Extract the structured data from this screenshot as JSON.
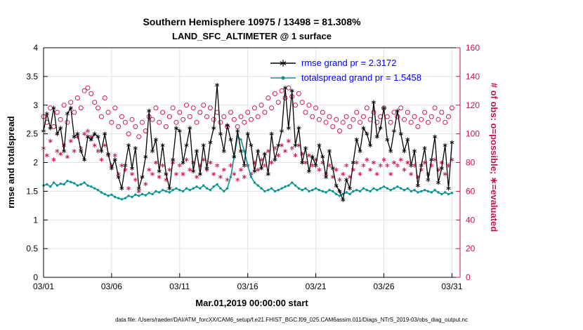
{
  "page": {
    "title_line1": "Southern Hemisphere 10975 / 13498 = 81.308%",
    "title_line2": "LAND_SFC_ALTIMETER @ 1 surface",
    "footer": "data file: /Users/raeder/DAI/ATM_forcXX/CAM6_setup/f.e21.FHIST_BGC.f09_025.CAM6assim.011/Diags_NTrS_2019-03/obs_diag_output.nc"
  },
  "chart_data": {
    "type": "line",
    "title": "Southern Hemisphere 10975 / 13498 = 81.308%",
    "subtitle": "LAND_SFC_ALTIMETER @ 1 surface",
    "xlabel": "Mar.01,2019 00:00:00 start",
    "ylabel_left": "rmse and totalspread",
    "ylabel_right": "# of obs: o=possible; ∗=evaluated",
    "grid": true,
    "x_range": [
      0,
      30.6
    ],
    "x_step": 0.25,
    "x_ticks": {
      "positions": [
        0,
        5,
        10,
        15,
        20,
        25,
        30
      ],
      "labels": [
        "03/01",
        "03/06",
        "03/11",
        "03/16",
        "03/21",
        "03/26",
        "03/31"
      ]
    },
    "y_left": {
      "min": 0,
      "max": 4,
      "tick_values": [
        0,
        0.5,
        1,
        1.5,
        2,
        2.5,
        3,
        3.5,
        4
      ],
      "tick_labels": [
        "0",
        "0.5",
        "1",
        "1.5",
        "2",
        "2.5",
        "3",
        "3.5",
        "4"
      ]
    },
    "y_right": {
      "min": 0,
      "max": 160,
      "tick_values": [
        0,
        20,
        40,
        60,
        80,
        100,
        120,
        140,
        160
      ],
      "tick_labels": [
        "0",
        "20",
        "40",
        "60",
        "80",
        "100",
        "120",
        "140",
        "160"
      ]
    },
    "legend": [
      {
        "label": "rmse grand pr = 2.3172",
        "series": "rmse",
        "marker": "asterisk"
      },
      {
        "label": "totalspread grand pr = 1.5458",
        "series": "totalspread",
        "marker": "dot"
      }
    ],
    "colors": {
      "rmse": "#000000",
      "totalspread": "#0a9595",
      "obs": "#cc1458",
      "axis_right": "#c8104e",
      "legend_text": "#0000ff",
      "grid": "#e3e3e3"
    },
    "series": {
      "rmse": [
        2.55,
        2.85,
        2.6,
        2.95,
        2.5,
        2.6,
        2.2,
        2.85,
        2.95,
        2.45,
        2.5,
        2.2,
        2.05,
        2.45,
        2.4,
        2.5,
        2.45,
        2.2,
        2.5,
        2.15,
        1.9,
        2.05,
        1.75,
        1.55,
        1.95,
        2.3,
        1.9,
        2.25,
        1.55,
        1.75,
        2.1,
        2.9,
        2.2,
        2.4,
        1.85,
        2.3,
        1.8,
        1.55,
        2.05,
        2.6,
        2.55,
        2.0,
        2.3,
        2.6,
        1.85,
        2.2,
        1.8,
        2.3,
        1.9,
        2.35,
        2.6,
        3.35,
        2.5,
        2.2,
        2.65,
        2.4,
        2.1,
        2.55,
        2.2,
        1.95,
        2.5,
        2.3,
        1.85,
        2.2,
        1.9,
        2.15,
        1.8,
        2.5,
        2.05,
        2.3,
        2.55,
        3.3,
        2.6,
        3.25,
        2.3,
        2.6,
        2.0,
        2.25,
        1.85,
        2.1,
        1.95,
        2.3,
        2.1,
        1.75,
        2.2,
        1.9,
        1.6,
        1.5,
        1.35,
        1.7,
        1.55,
        2.0,
        2.4,
        2.2,
        2.6,
        2.5,
        2.3,
        3.05,
        2.45,
        2.6,
        2.95,
        2.4,
        2.2,
        2.55,
        2.9,
        2.5,
        2.2,
        2.4,
        1.95,
        2.2,
        1.6,
        1.95,
        2.25,
        1.7,
        2.05,
        2.45,
        1.65,
        1.9,
        2.3,
        1.55,
        2.35
      ],
      "totalspread": [
        1.6,
        1.62,
        1.58,
        1.65,
        1.6,
        1.63,
        1.62,
        1.68,
        1.66,
        1.64,
        1.6,
        1.62,
        1.65,
        1.6,
        1.58,
        1.55,
        1.52,
        1.48,
        1.45,
        1.42,
        1.44,
        1.4,
        1.38,
        1.36,
        1.38,
        1.42,
        1.4,
        1.44,
        1.42,
        1.45,
        1.43,
        1.47,
        1.45,
        1.5,
        1.48,
        1.52,
        1.5,
        1.48,
        1.52,
        1.55,
        1.52,
        1.5,
        1.55,
        1.52,
        1.55,
        1.58,
        1.55,
        1.6,
        1.55,
        1.52,
        1.58,
        1.62,
        1.55,
        1.5,
        1.55,
        1.75,
        2.1,
        2.45,
        2.4,
        2.2,
        1.95,
        1.75,
        1.65,
        1.6,
        1.55,
        1.5,
        1.52,
        1.55,
        1.5,
        1.52,
        1.55,
        1.58,
        1.6,
        1.65,
        1.6,
        1.55,
        1.52,
        1.55,
        1.5,
        1.52,
        1.55,
        1.52,
        1.5,
        1.48,
        1.52,
        1.5,
        1.45,
        1.42,
        1.45,
        1.48,
        1.45,
        1.5,
        1.52,
        1.5,
        1.55,
        1.52,
        1.5,
        1.55,
        1.52,
        1.55,
        1.58,
        1.55,
        1.52,
        1.55,
        1.58,
        1.55,
        1.52,
        1.55,
        1.5,
        1.52,
        1.48,
        1.5,
        1.52,
        1.5,
        1.48,
        1.52,
        1.48,
        1.45,
        1.48,
        1.45,
        1.47
      ],
      "possible": [
        112,
        108,
        118,
        105,
        115,
        110,
        120,
        108,
        122,
        115,
        125,
        118,
        130,
        132,
        128,
        122,
        118,
        112,
        125,
        115,
        108,
        118,
        105,
        112,
        108,
        100,
        110,
        105,
        98,
        108,
        102,
        112,
        110,
        118,
        108,
        115,
        105,
        112,
        118,
        108,
        115,
        110,
        120,
        112,
        118,
        108,
        115,
        120,
        112,
        118,
        110,
        115,
        108,
        112,
        105,
        115,
        110,
        105,
        112,
        108,
        115,
        110,
        118,
        112,
        120,
        115,
        125,
        118,
        128,
        122,
        130,
        125,
        132,
        126,
        120,
        128,
        122,
        115,
        120,
        112,
        118,
        110,
        115,
        108,
        112,
        105,
        110,
        102,
        108,
        112,
        105,
        110,
        115,
        108,
        112,
        118,
        110,
        115,
        108,
        112,
        118,
        112,
        108,
        115,
        112,
        118,
        110,
        115,
        108,
        112,
        105,
        110,
        115,
        108,
        112,
        118,
        110,
        115,
        108,
        112,
        118
      ],
      "evaluated": [
        90,
        85,
        95,
        82,
        88,
        86,
        92,
        84,
        95,
        88,
        98,
        90,
        100,
        102,
        98,
        92,
        88,
        82,
        92,
        85,
        78,
        85,
        72,
        78,
        75,
        62,
        72,
        68,
        60,
        70,
        65,
        75,
        72,
        80,
        70,
        78,
        68,
        75,
        80,
        72,
        78,
        72,
        82,
        75,
        80,
        70,
        78,
        82,
        75,
        80,
        72,
        78,
        70,
        75,
        68,
        78,
        72,
        68,
        75,
        70,
        78,
        72,
        80,
        75,
        82,
        78,
        88,
        80,
        90,
        85,
        92,
        88,
        95,
        90,
        85,
        92,
        86,
        80,
        85,
        78,
        82,
        75,
        80,
        72,
        78,
        70,
        75,
        68,
        72,
        78,
        70,
        75,
        80,
        72,
        78,
        82,
        75,
        80,
        72,
        78,
        82,
        78,
        72,
        80,
        78,
        82,
        75,
        80,
        72,
        78,
        70,
        75,
        80,
        72,
        78,
        82,
        75,
        80,
        72,
        78,
        82
      ]
    }
  }
}
